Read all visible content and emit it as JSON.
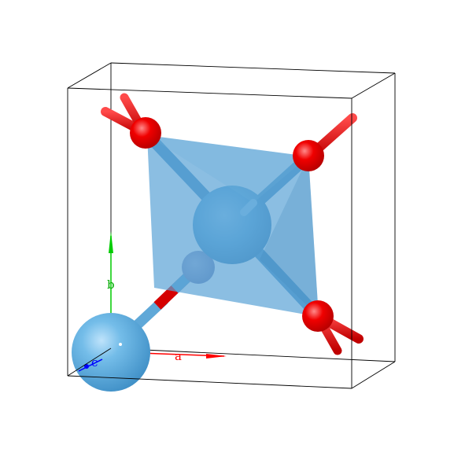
{
  "axes": {
    "a": {
      "label": "a",
      "color": "#ff0000"
    },
    "b": {
      "label": "b",
      "color": "#00aa00"
    },
    "c": {
      "label": "c",
      "color": "#0000ff"
    }
  },
  "colors": {
    "background": "#ffffff",
    "cell_edges": "#000000",
    "metal_atom": "#6bb6e6",
    "anion_atom": "#ff0000",
    "polyhedron": "#5aa3d6"
  }
}
